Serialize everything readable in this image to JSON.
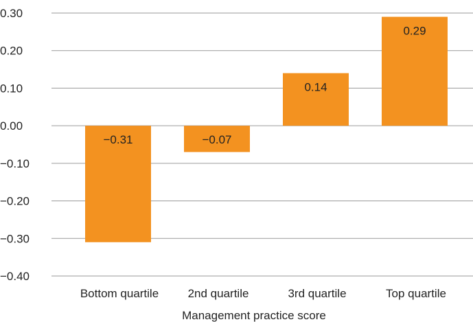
{
  "chart_data": {
    "type": "bar",
    "categories": [
      "Bottom quartile",
      "2nd quartile",
      "3rd quartile",
      "Top quartile"
    ],
    "values": [
      -0.31,
      -0.07,
      0.14,
      0.29
    ],
    "data_labels": [
      "−0.31",
      "−0.07",
      "0.14",
      "0.29"
    ],
    "title": "",
    "xlabel": "Management practice score",
    "ylabel": "",
    "ylim": [
      -0.4,
      0.3
    ],
    "yticks": [
      0.3,
      0.2,
      0.1,
      0.0,
      -0.1,
      -0.2,
      -0.3,
      -0.4
    ],
    "ytick_labels": [
      "0.30",
      "0.20",
      "0.10",
      "0.00",
      "−0.10",
      "−0.20",
      "−0.30",
      "−0.40"
    ],
    "bar_color": "#F39220",
    "grid": true,
    "legend": "none"
  }
}
